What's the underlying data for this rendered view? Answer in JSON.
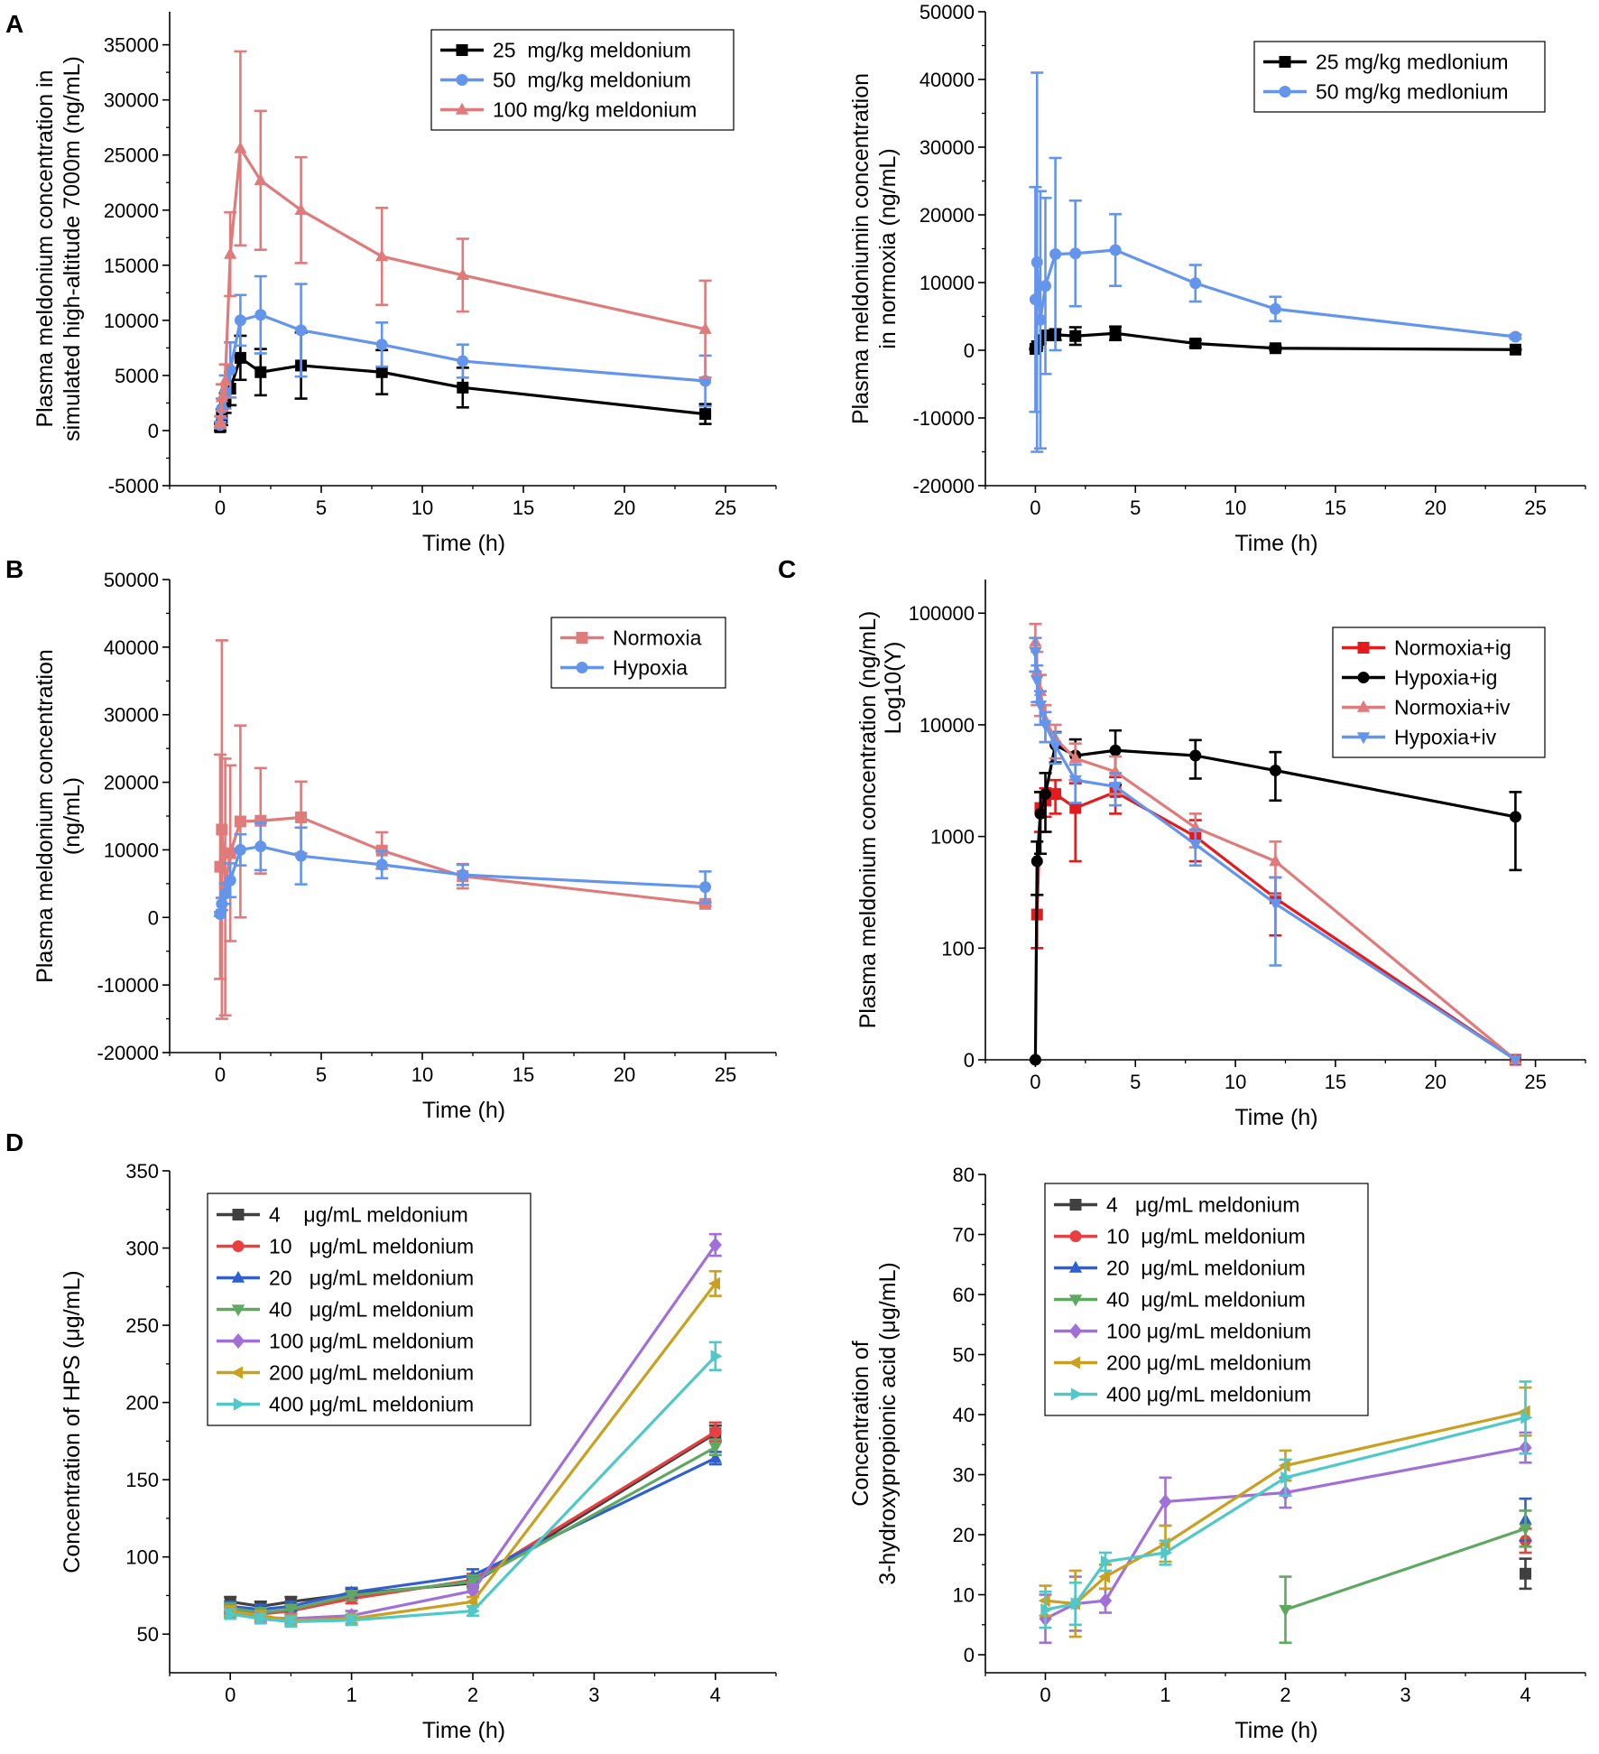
{
  "figure": {
    "panel_letters": [
      "A",
      "B",
      "C",
      "D"
    ]
  },
  "chart_data": [
    {
      "id": "A1",
      "panel_letter": "A",
      "type": "line",
      "yscale": "linear",
      "xlabel": "Time (h)",
      "ylabel": [
        "Plasma meldonium concentration in",
        "simulated high-altitude 7000m (ng/mL)"
      ],
      "xlim": [
        -2.5,
        27.5
      ],
      "ylim": [
        -5000,
        38000
      ],
      "xticks": [
        0,
        5,
        10,
        15,
        20,
        25
      ],
      "yticks": [
        -5000,
        0,
        5000,
        10000,
        15000,
        20000,
        25000,
        30000,
        35000
      ],
      "legend_position": "top-right",
      "series": [
        {
          "name": "25  mg/kg meldonium",
          "color": "#000000",
          "marker": "square",
          "x": [
            0,
            0.083,
            0.25,
            0.5,
            1,
            2,
            4,
            8,
            12,
            24
          ],
          "y": [
            300,
            1200,
            2500,
            3800,
            6600,
            5300,
            5900,
            5300,
            3900,
            1500
          ],
          "err": [
            300,
            700,
            900,
            1500,
            2000,
            2100,
            3000,
            2000,
            1800,
            900
          ]
        },
        {
          "name": "50  mg/kg meldonium",
          "color": "#6495ED",
          "marker": "circle",
          "x": [
            0,
            0.083,
            0.25,
            0.5,
            1,
            2,
            4,
            8,
            12,
            24
          ],
          "y": [
            500,
            2000,
            3500,
            5500,
            10000,
            10500,
            9100,
            7800,
            6300,
            4500
          ],
          "err": [
            300,
            900,
            1500,
            2500,
            2300,
            3500,
            4200,
            2000,
            1500,
            2300
          ]
        },
        {
          "name": "100 mg/kg meldonium",
          "color": "#E07B7B",
          "marker": "triangle",
          "x": [
            0,
            0.083,
            0.25,
            0.5,
            1,
            2,
            4,
            8,
            12,
            24
          ],
          "y": [
            800,
            3000,
            4500,
            16000,
            25600,
            22700,
            20000,
            15800,
            14100,
            9200
          ],
          "err": [
            500,
            1200,
            1500,
            3800,
            8800,
            6300,
            4800,
            4400,
            3300,
            4400
          ]
        }
      ]
    },
    {
      "id": "A2",
      "panel_letter": "",
      "type": "line",
      "yscale": "linear",
      "xlabel": "Time (h)",
      "ylabel": [
        "Plasma meldoniumin concentration",
        "in normoxia (ng/mL)"
      ],
      "xlim": [
        -2.5,
        27.5
      ],
      "ylim": [
        -20000,
        50000
      ],
      "xticks": [
        0,
        5,
        10,
        15,
        20,
        25
      ],
      "yticks": [
        -20000,
        -10000,
        0,
        10000,
        20000,
        30000,
        40000,
        50000
      ],
      "legend_position": "top-right",
      "series": [
        {
          "name": "25 mg/kg medlonium",
          "color": "#000000",
          "marker": "square",
          "x": [
            0,
            0.083,
            0.25,
            0.5,
            1,
            2,
            4,
            8,
            12,
            24
          ],
          "y": [
            200,
            600,
            1500,
            2200,
            2300,
            2100,
            2500,
            1000,
            300,
            100
          ],
          "err": [
            100,
            300,
            500,
            700,
            800,
            1300,
            1000,
            500,
            300,
            50
          ]
        },
        {
          "name": "50 mg/kg medlonium",
          "color": "#6495ED",
          "marker": "circle",
          "x": [
            0,
            0.083,
            0.25,
            0.5,
            1,
            2,
            4,
            8,
            12,
            24
          ],
          "y": [
            7500,
            13000,
            4500,
            9500,
            14200,
            14300,
            14800,
            9900,
            6100,
            2000
          ],
          "err": [
            16600,
            28000,
            19000,
            13000,
            14200,
            7800,
            5300,
            2700,
            1800,
            300
          ]
        }
      ]
    },
    {
      "id": "B",
      "panel_letter": "B",
      "type": "line",
      "yscale": "linear",
      "xlabel": "Time (h)",
      "ylabel": [
        "Plasma meldonium concentration",
        "(ng/mL)"
      ],
      "xlim": [
        -2.5,
        27.5
      ],
      "ylim": [
        -20000,
        50000
      ],
      "xticks": [
        0,
        5,
        10,
        15,
        20,
        25
      ],
      "yticks": [
        -20000,
        -10000,
        0,
        10000,
        20000,
        30000,
        40000,
        50000
      ],
      "legend_position": "top-right",
      "series": [
        {
          "name": "Normoxia",
          "color": "#E07B7B",
          "marker": "square",
          "x": [
            0,
            0.083,
            0.25,
            0.5,
            1,
            2,
            4,
            8,
            12,
            24
          ],
          "y": [
            7500,
            13000,
            4500,
            9500,
            14200,
            14300,
            14800,
            9900,
            6100,
            2000
          ],
          "err": [
            16600,
            28000,
            19000,
            13000,
            14200,
            7800,
            5300,
            2700,
            1800,
            300
          ]
        },
        {
          "name": "Hypoxia",
          "color": "#6495ED",
          "marker": "circle",
          "x": [
            0,
            0.083,
            0.25,
            0.5,
            1,
            2,
            4,
            8,
            12,
            24
          ],
          "y": [
            500,
            2000,
            3500,
            5500,
            10000,
            10500,
            9100,
            7800,
            6300,
            4500
          ],
          "err": [
            300,
            900,
            1500,
            2500,
            2300,
            3500,
            4200,
            2000,
            1500,
            2300
          ]
        }
      ]
    },
    {
      "id": "C",
      "panel_letter": "C",
      "type": "line",
      "yscale": "log",
      "xlabel": "Time (h)",
      "ylabel": [
        "Plasma meldonium concentration (ng/mL)",
        "Log10(Y)"
      ],
      "xlim": [
        -2.5,
        27.5
      ],
      "ylim": [
        0,
        200000
      ],
      "xticks": [
        0,
        5,
        10,
        15,
        20,
        25
      ],
      "yticks": [
        0,
        100,
        1000,
        10000,
        100000
      ],
      "legend_position": "top-right",
      "series": [
        {
          "name": "Normoxia+ig",
          "color": "#E41A1C",
          "marker": "square",
          "x": [
            0.083,
            0.25,
            0.5,
            1,
            2,
            4,
            8,
            12,
            24
          ],
          "y": [
            200,
            1800,
            2100,
            2400,
            1800,
            2500,
            1000,
            280,
            0
          ],
          "err": [
            100,
            700,
            600,
            800,
            1200,
            900,
            400,
            150,
            0
          ]
        },
        {
          "name": "Hypoxia+ig",
          "color": "#000000",
          "marker": "circle",
          "x": [
            0,
            0.083,
            0.25,
            0.5,
            1,
            2,
            4,
            8,
            12,
            24
          ],
          "y": [
            0,
            600,
            1600,
            2400,
            6600,
            5300,
            5900,
            5300,
            3900,
            1500
          ],
          "err": [
            0,
            300,
            900,
            1300,
            2000,
            2100,
            3000,
            2000,
            1800,
            1000
          ]
        },
        {
          "name": "Normoxia+iv",
          "color": "#E07B7B",
          "marker": "triangle",
          "x": [
            0,
            0.083,
            0.25,
            0.5,
            1,
            2,
            4,
            8,
            12,
            24
          ],
          "y": [
            55000,
            30000,
            20000,
            11000,
            7500,
            5000,
            3800,
            1200,
            600,
            0
          ],
          "err": [
            25000,
            15000,
            8000,
            4000,
            2500,
            1800,
            1400,
            400,
            300,
            0
          ]
        },
        {
          "name": "Hypoxia+iv",
          "color": "#6495ED",
          "marker": "triangle-down",
          "x": [
            0,
            0.083,
            0.25,
            0.5,
            1,
            2,
            4,
            8,
            12,
            24
          ],
          "y": [
            45000,
            25000,
            15000,
            10000,
            6500,
            3200,
            2800,
            850,
            250,
            0
          ],
          "err": [
            15000,
            9000,
            5000,
            3000,
            2000,
            1200,
            900,
            300,
            180,
            0
          ]
        }
      ]
    },
    {
      "id": "D1",
      "panel_letter": "D",
      "type": "line",
      "yscale": "linear",
      "xlabel": "Time (h)",
      "ylabel": [
        "Concentration of HPS (μg/mL)"
      ],
      "xlim": [
        -0.5,
        4.5
      ],
      "ylim": [
        25,
        350
      ],
      "xticks": [
        0,
        1,
        2,
        3,
        4
      ],
      "yticks": [
        50,
        100,
        150,
        200,
        250,
        300,
        350
      ],
      "legend_position": "top-left",
      "series": [
        {
          "name": "4    μg/mL meldonium",
          "color": "#404040",
          "marker": "square",
          "x": [
            0,
            0.25,
            0.5,
            1,
            2,
            4
          ],
          "y": [
            71,
            68,
            71,
            76,
            83,
            180
          ],
          "err": [
            3,
            3,
            3,
            3,
            3,
            5
          ]
        },
        {
          "name": "10   μg/mL meldonium",
          "color": "#E84040",
          "marker": "circle",
          "x": [
            0,
            0.25,
            0.5,
            1,
            2,
            4
          ],
          "y": [
            66,
            63,
            65,
            73,
            85,
            181
          ],
          "err": [
            3,
            3,
            3,
            3,
            4,
            6
          ]
        },
        {
          "name": "20   μg/mL meldonium",
          "color": "#2F5FD0",
          "marker": "triangle",
          "x": [
            0,
            0.25,
            0.5,
            1,
            2,
            4
          ],
          "y": [
            68,
            66,
            68,
            77,
            88,
            164
          ],
          "err": [
            3,
            3,
            3,
            3,
            4,
            4
          ]
        },
        {
          "name": "40   μg/mL meldonium",
          "color": "#5FA861",
          "marker": "triangle-down",
          "x": [
            0,
            0.25,
            0.5,
            1,
            2,
            4
          ],
          "y": [
            67,
            64,
            66,
            75,
            84,
            171
          ],
          "err": [
            3,
            3,
            3,
            3,
            4,
            5
          ]
        },
        {
          "name": "100 μg/mL meldonium",
          "color": "#A070D8",
          "marker": "diamond",
          "x": [
            0,
            0.25,
            0.5,
            1,
            2,
            4
          ],
          "y": [
            64,
            61,
            60,
            62,
            78,
            302
          ],
          "err": [
            3,
            3,
            3,
            3,
            4,
            7
          ]
        },
        {
          "name": "200 μg/mL meldonium",
          "color": "#C9A020",
          "marker": "triangle-left",
          "x": [
            0,
            0.25,
            0.5,
            1,
            2,
            4
          ],
          "y": [
            65,
            62,
            59,
            60,
            71,
            277
          ],
          "err": [
            3,
            3,
            3,
            3,
            3,
            8
          ]
        },
        {
          "name": "400 μg/mL meldonium",
          "color": "#50C8C8",
          "marker": "triangle-right",
          "x": [
            0,
            0.25,
            0.5,
            1,
            2,
            4
          ],
          "y": [
            63,
            60,
            58,
            59,
            65,
            230
          ],
          "err": [
            3,
            3,
            3,
            3,
            3,
            9
          ]
        }
      ]
    },
    {
      "id": "D2",
      "panel_letter": "",
      "type": "line",
      "yscale": "linear",
      "xlabel": "Time (h)",
      "ylabel": [
        "Concentration of",
        "3-hydroxypropionic acid (μg/mL)"
      ],
      "xlim": [
        -0.5,
        4.5
      ],
      "ylim": [
        -3,
        80
      ],
      "xticks": [
        0,
        1,
        2,
        3,
        4
      ],
      "yticks": [
        0,
        10,
        20,
        30,
        40,
        50,
        60,
        70,
        80
      ],
      "legend_position": "top-left",
      "series": [
        {
          "name": "4   μg/mL meldonium",
          "color": "#404040",
          "marker": "square",
          "x": [
            4
          ],
          "y": [
            13.5
          ],
          "err": [
            2.5
          ],
          "connect": false
        },
        {
          "name": "10  μg/mL meldonium",
          "color": "#E84040",
          "marker": "circle",
          "x": [
            4
          ],
          "y": [
            19
          ],
          "err": [
            2
          ],
          "connect": false
        },
        {
          "name": "20  μg/mL meldonium",
          "color": "#2F5FD0",
          "marker": "triangle",
          "x": [
            4
          ],
          "y": [
            22.5
          ],
          "err": [
            3.5
          ],
          "connect": false
        },
        {
          "name": "40  μg/mL meldonium",
          "color": "#5FA861",
          "marker": "triangle-down",
          "x": [
            2,
            4
          ],
          "y": [
            7.5,
            21
          ],
          "err": [
            5.5,
            3
          ]
        },
        {
          "name": "100 μg/mL meldonium",
          "color": "#A070D8",
          "marker": "diamond",
          "x": [
            0,
            0.25,
            0.5,
            1,
            2,
            4
          ],
          "y": [
            6,
            8.5,
            9,
            25.5,
            27,
            34.5
          ],
          "err": [
            4,
            4.5,
            2,
            4,
            2.5,
            2.5
          ]
        },
        {
          "name": "200 μg/mL meldonium",
          "color": "#C9A020",
          "marker": "triangle-left",
          "x": [
            0,
            0.25,
            0.5,
            1,
            2,
            4
          ],
          "y": [
            9,
            8.5,
            13,
            18.5,
            31.5,
            40.5
          ],
          "err": [
            2.5,
            5.5,
            2,
            3,
            2.5,
            4
          ]
        },
        {
          "name": "400 μg/mL meldonium",
          "color": "#50C8C8",
          "marker": "triangle-right",
          "x": [
            0,
            0.25,
            0.5,
            1,
            2,
            4
          ],
          "y": [
            7.5,
            8.5,
            15.5,
            17,
            29.5,
            39.5
          ],
          "err": [
            3,
            3.5,
            1.5,
            2,
            3,
            6
          ]
        }
      ]
    }
  ]
}
